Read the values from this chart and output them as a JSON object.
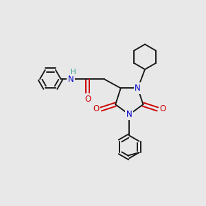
{
  "background_color": "#e8e8e8",
  "bond_color": "#1a1a1a",
  "bond_width": 1.4,
  "atom_colors": {
    "N": "#0000cc",
    "O": "#cc0000",
    "C": "#1a1a1a",
    "H": "#2aa090"
  },
  "font_size": 8.5,
  "figsize": [
    3.0,
    3.0
  ],
  "dpi": 100
}
